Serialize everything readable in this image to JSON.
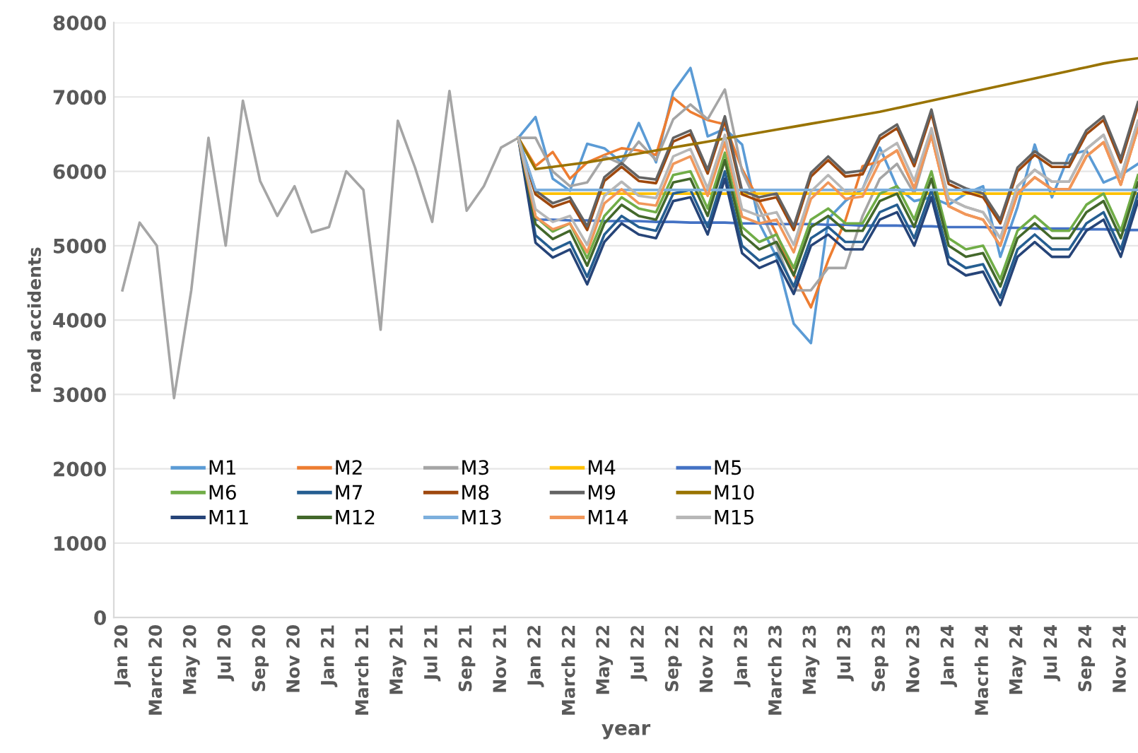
{
  "chart_data": {
    "type": "line",
    "xlabel": "year",
    "ylabel": "road accidents",
    "categories": [
      "Jan 20",
      null,
      "March 20",
      null,
      "May 20",
      null,
      "Jul 20",
      null,
      "Sep 20",
      null,
      "Nov 20",
      null,
      "Jan 21",
      null,
      "March 21",
      null,
      "May 21",
      null,
      "Jul 21",
      null,
      "Sep 21",
      null,
      "Nov 21",
      null,
      "Jan 22",
      null,
      "March 22",
      null,
      "May 22",
      null,
      "Jul 22",
      null,
      "Sep 22",
      null,
      "Nov 22",
      null,
      "Jan 23",
      null,
      "March 23",
      null,
      "May 23",
      null,
      "Jul 23",
      null,
      "Sep 23",
      null,
      "Nov 23",
      null,
      "Jan 24",
      null,
      "Macrh 24",
      null,
      "May 24",
      null,
      "Jul 24",
      null,
      "Sep 24",
      null,
      "Nov 24",
      null
    ],
    "ylim": [
      0,
      8000
    ],
    "yticks": [
      0,
      1000,
      2000,
      3000,
      4000,
      5000,
      6000,
      7000,
      8000
    ],
    "grid": "y",
    "legend": "bottom left",
    "marker": "none",
    "line_style": "solid",
    "series": [
      {
        "color": "#a5a5a5",
        "values": [
          4400,
          5310,
          5000,
          2950,
          4400,
          6450,
          5000,
          6950,
          5870,
          5400,
          5800,
          5180,
          5250,
          6000,
          5750,
          3870,
          6680,
          6050,
          5320,
          7080,
          5470,
          5800,
          6320,
          6450,
          null,
          null,
          null,
          null,
          null,
          null,
          null,
          null,
          null,
          null,
          null,
          null,
          null,
          null,
          null,
          null,
          null,
          null,
          null,
          null,
          null,
          null,
          null,
          null,
          null,
          null,
          null,
          null,
          null,
          null,
          null,
          null,
          null,
          null,
          null,
          null
        ]
      },
      {
        "name": "M1",
        "color": "#5b9bd5",
        "values": [
          null,
          null,
          null,
          null,
          null,
          null,
          null,
          null,
          null,
          null,
          null,
          null,
          null,
          null,
          null,
          null,
          null,
          null,
          null,
          null,
          null,
          null,
          null,
          6450,
          6730,
          5900,
          5740,
          6370,
          6310,
          6120,
          6650,
          6120,
          7070,
          7390,
          6470,
          6570,
          6360,
          5300,
          4850,
          3950,
          3690,
          5360,
          5600,
          5760,
          6320,
          5790,
          5600,
          5650,
          5550,
          5700,
          5800,
          4850,
          5520,
          6360,
          5650,
          6220,
          6280,
          5850,
          5950,
          6100
        ]
      },
      {
        "name": "M2",
        "color": "#ed7d31",
        "values": [
          null,
          null,
          null,
          null,
          null,
          null,
          null,
          null,
          null,
          null,
          null,
          null,
          null,
          null,
          null,
          null,
          null,
          null,
          null,
          null,
          null,
          null,
          null,
          6450,
          6070,
          6260,
          5900,
          6120,
          6220,
          6310,
          6280,
          6220,
          6990,
          6800,
          6690,
          6630,
          6030,
          5600,
          5160,
          4610,
          4170,
          4800,
          5340,
          6070,
          6130,
          6280,
          5770,
          6480,
          5530,
          5420,
          5350,
          5000,
          5700,
          5920,
          5760,
          5760,
          6200,
          6390,
          5820,
          6580
        ]
      },
      {
        "name": "M3",
        "color": "#a5a5a5",
        "values": [
          null,
          null,
          null,
          null,
          null,
          null,
          null,
          null,
          null,
          null,
          null,
          null,
          null,
          null,
          null,
          null,
          null,
          null,
          null,
          null,
          null,
          null,
          null,
          6450,
          6450,
          6000,
          5800,
          5850,
          6200,
          6100,
          6400,
          6150,
          6700,
          6900,
          6700,
          7100,
          6000,
          5500,
          5000,
          4400,
          4400,
          4700,
          4700,
          5400,
          5900,
          6100,
          5700,
          6500,
          5630,
          5520,
          5450,
          5100,
          5800,
          6020,
          5860,
          5860,
          6300,
          6490,
          5920,
          6680
        ]
      },
      {
        "name": "M4",
        "color": "#ffc000",
        "values": [
          null,
          null,
          null,
          null,
          null,
          null,
          null,
          null,
          null,
          null,
          null,
          null,
          null,
          null,
          null,
          null,
          null,
          null,
          null,
          null,
          null,
          null,
          null,
          6450,
          5700,
          5700,
          5700,
          5700,
          5700,
          5700,
          5700,
          5700,
          5700,
          5700,
          5700,
          5700,
          5700,
          5700,
          5700,
          5700,
          5700,
          5700,
          5700,
          5700,
          5700,
          5700,
          5700,
          5700,
          5700,
          5700,
          5700,
          5700,
          5700,
          5700,
          5700,
          5700,
          5700,
          5700,
          5700,
          5700
        ]
      },
      {
        "name": "M5",
        "color": "#4472c4",
        "values": [
          null,
          null,
          null,
          null,
          null,
          null,
          null,
          null,
          null,
          null,
          null,
          null,
          null,
          null,
          null,
          null,
          null,
          null,
          null,
          null,
          null,
          null,
          null,
          6450,
          5350,
          5350,
          5340,
          5340,
          5330,
          5330,
          5330,
          5320,
          5320,
          5310,
          5310,
          5310,
          5300,
          5300,
          5290,
          5290,
          5290,
          5280,
          5280,
          5270,
          5270,
          5270,
          5260,
          5260,
          5250,
          5250,
          5250,
          5240,
          5240,
          5230,
          5230,
          5230,
          5220,
          5220,
          5210,
          5210
        ]
      },
      {
        "name": "M6",
        "color": "#70ad47",
        "values": [
          null,
          null,
          null,
          null,
          null,
          null,
          null,
          null,
          null,
          null,
          null,
          null,
          null,
          null,
          null,
          null,
          null,
          null,
          null,
          null,
          null,
          null,
          null,
          6450,
          5390,
          5190,
          5300,
          4830,
          5400,
          5650,
          5500,
          5450,
          5950,
          6000,
          5500,
          6250,
          5250,
          5050,
          5150,
          4700,
          5350,
          5500,
          5300,
          5300,
          5700,
          5800,
          5350,
          6000,
          5100,
          4950,
          5000,
          4550,
          5200,
          5400,
          5200,
          5200,
          5550,
          5700,
          5200,
          5950
        ]
      },
      {
        "name": "M7",
        "color": "#255e91",
        "values": [
          null,
          null,
          null,
          null,
          null,
          null,
          null,
          null,
          null,
          null,
          null,
          null,
          null,
          null,
          null,
          null,
          null,
          null,
          null,
          null,
          null,
          null,
          null,
          6450,
          5140,
          4940,
          5050,
          4580,
          5150,
          5400,
          5250,
          5200,
          5700,
          5750,
          5250,
          6000,
          5000,
          4800,
          4900,
          4450,
          5100,
          5250,
          5050,
          5050,
          5450,
          5550,
          5100,
          5750,
          4850,
          4700,
          4750,
          4300,
          4950,
          5150,
          4950,
          4950,
          5300,
          5450,
          4950,
          5700
        ]
      },
      {
        "name": "M8",
        "color": "#9e480e",
        "values": [
          null,
          null,
          null,
          null,
          null,
          null,
          null,
          null,
          null,
          null,
          null,
          null,
          null,
          null,
          null,
          null,
          null,
          null,
          null,
          null,
          null,
          null,
          null,
          6450,
          5690,
          5520,
          5600,
          5210,
          5870,
          6060,
          5870,
          5840,
          6400,
          6500,
          5970,
          6690,
          5690,
          5600,
          5650,
          5210,
          5930,
          6150,
          5930,
          5960,
          6430,
          6580,
          6070,
          6780,
          5830,
          5720,
          5650,
          5300,
          6000,
          6220,
          6060,
          6060,
          6500,
          6690,
          6120,
          6880
        ]
      },
      {
        "name": "M9",
        "color": "#636363",
        "values": [
          null,
          null,
          null,
          null,
          null,
          null,
          null,
          null,
          null,
          null,
          null,
          null,
          null,
          null,
          null,
          null,
          null,
          null,
          null,
          null,
          null,
          null,
          null,
          6450,
          5740,
          5570,
          5650,
          5260,
          5920,
          6110,
          5920,
          5890,
          6450,
          6550,
          6020,
          6740,
          5740,
          5650,
          5700,
          5260,
          5980,
          6200,
          5980,
          6010,
          6480,
          6630,
          6120,
          6830,
          5880,
          5770,
          5700,
          5350,
          6050,
          6270,
          6110,
          6110,
          6550,
          6740,
          6170,
          6930
        ]
      },
      {
        "name": "M10",
        "color": "#997300",
        "values": [
          null,
          null,
          null,
          null,
          null,
          null,
          null,
          null,
          null,
          null,
          null,
          null,
          null,
          null,
          null,
          null,
          null,
          null,
          null,
          null,
          null,
          null,
          null,
          6450,
          6030,
          6060,
          6090,
          6120,
          6160,
          6200,
          6240,
          6280,
          6320,
          6360,
          6400,
          6440,
          6480,
          6520,
          6560,
          6600,
          6640,
          6680,
          6720,
          6760,
          6800,
          6850,
          6900,
          6950,
          7000,
          7050,
          7100,
          7150,
          7200,
          7250,
          7300,
          7350,
          7400,
          7450,
          7490,
          7520
        ]
      },
      {
        "name": "M11",
        "color": "#264478",
        "values": [
          null,
          null,
          null,
          null,
          null,
          null,
          null,
          null,
          null,
          null,
          null,
          null,
          null,
          null,
          null,
          null,
          null,
          null,
          null,
          null,
          null,
          null,
          null,
          6450,
          5040,
          4840,
          4950,
          4480,
          5050,
          5300,
          5150,
          5100,
          5600,
          5650,
          5150,
          5900,
          4900,
          4700,
          4800,
          4350,
          5000,
          5150,
          4950,
          4950,
          5350,
          5450,
          5000,
          5650,
          4750,
          4600,
          4650,
          4200,
          4850,
          5050,
          4850,
          4850,
          5200,
          5350,
          4850,
          5600
        ]
      },
      {
        "name": "M12",
        "color": "#43682b",
        "values": [
          null,
          null,
          null,
          null,
          null,
          null,
          null,
          null,
          null,
          null,
          null,
          null,
          null,
          null,
          null,
          null,
          null,
          null,
          null,
          null,
          null,
          null,
          null,
          6450,
          5290,
          5090,
          5200,
          4730,
          5300,
          5550,
          5400,
          5350,
          5850,
          5900,
          5400,
          6150,
          5150,
          4950,
          5050,
          4600,
          5250,
          5400,
          5200,
          5200,
          5600,
          5700,
          5250,
          5900,
          5000,
          4850,
          4900,
          4450,
          5100,
          5300,
          5100,
          5100,
          5450,
          5600,
          5100,
          5850
        ]
      },
      {
        "name": "M13",
        "color": "#7cafdd",
        "values": [
          null,
          null,
          null,
          null,
          null,
          null,
          null,
          null,
          null,
          null,
          null,
          null,
          null,
          null,
          null,
          null,
          null,
          null,
          null,
          null,
          null,
          null,
          null,
          6450,
          5750,
          5750,
          5750,
          5750,
          5750,
          5750,
          5750,
          5750,
          5750,
          5750,
          5750,
          5750,
          5750,
          5750,
          5750,
          5750,
          5750,
          5750,
          5750,
          5750,
          5750,
          5750,
          5750,
          5750,
          5750,
          5750,
          5750,
          5750,
          5750,
          5750,
          5750,
          5750,
          5750,
          5750,
          5750,
          5750
        ]
      },
      {
        "name": "M14",
        "color": "#f1975a",
        "values": [
          null,
          null,
          null,
          null,
          null,
          null,
          null,
          null,
          null,
          null,
          null,
          null,
          null,
          null,
          null,
          null,
          null,
          null,
          null,
          null,
          null,
          null,
          null,
          6450,
          5390,
          5220,
          5300,
          4910,
          5570,
          5760,
          5570,
          5540,
          6100,
          6200,
          5670,
          6390,
          5390,
          5300,
          5350,
          4910,
          5630,
          5850,
          5630,
          5660,
          6130,
          6280,
          5770,
          6480,
          5530,
          5420,
          5350,
          5000,
          5700,
          5920,
          5760,
          5760,
          6200,
          6390,
          5820,
          6580
        ]
      },
      {
        "name": "M15",
        "color": "#b7b7b7",
        "values": [
          null,
          null,
          null,
          null,
          null,
          null,
          null,
          null,
          null,
          null,
          null,
          null,
          null,
          null,
          null,
          null,
          null,
          null,
          null,
          null,
          null,
          null,
          null,
          6450,
          5490,
          5320,
          5400,
          5010,
          5670,
          5860,
          5670,
          5640,
          6200,
          6300,
          5770,
          6490,
          5490,
          5400,
          5450,
          5010,
          5730,
          5950,
          5730,
          5760,
          6230,
          6380,
          5870,
          6580,
          5630,
          5520,
          5450,
          5100,
          5800,
          6020,
          5860,
          5860,
          6300,
          6490,
          5920,
          6680
        ]
      }
    ]
  }
}
